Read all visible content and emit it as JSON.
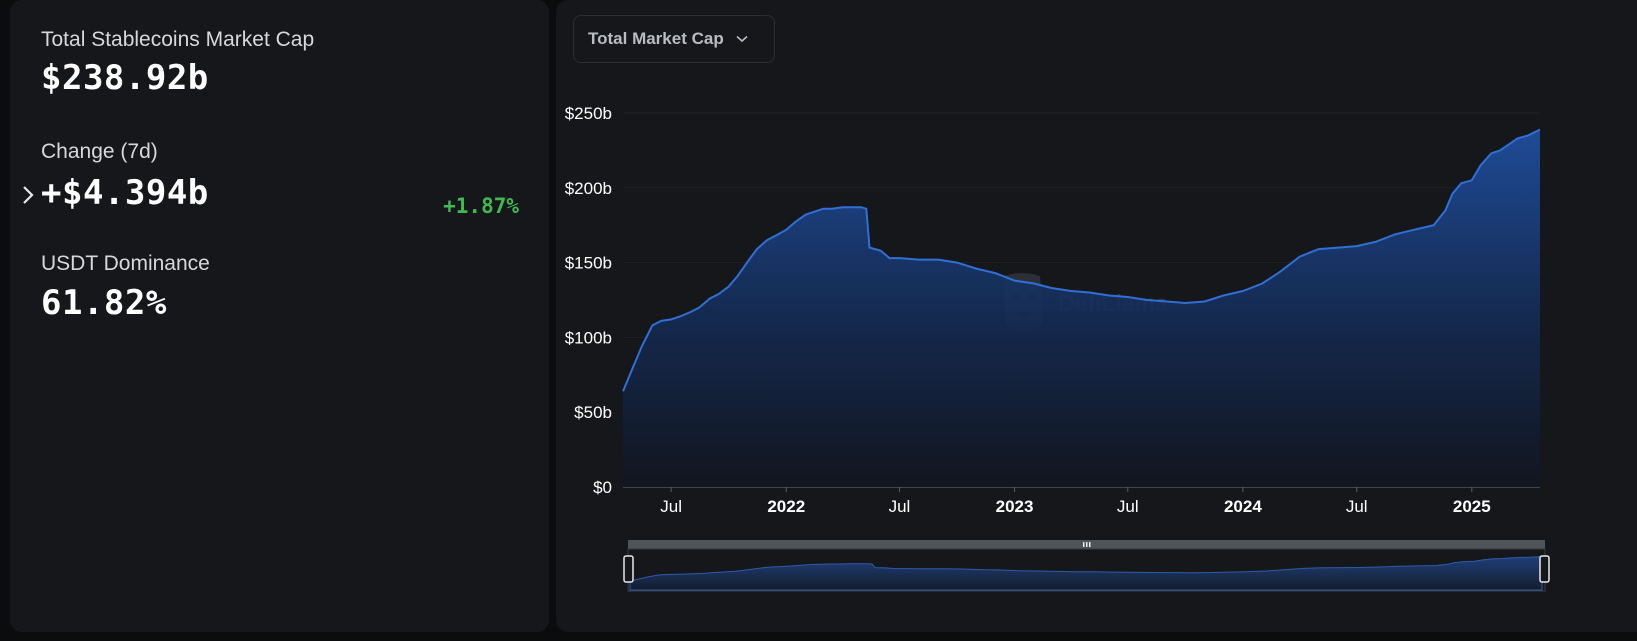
{
  "stats": {
    "total_label": "Total Stablecoins Market Cap",
    "total_value": "$238.92b",
    "change_label": "Change (7d)",
    "change_value": "+$4.394b",
    "change_pct": "+1.87%",
    "dominance_label": "USDT Dominance",
    "dominance_value": "61.82%"
  },
  "dropdown": {
    "label": "Total Market Cap",
    "icon": "chevron-down-icon"
  },
  "colors": {
    "accent": "#2f6fd6",
    "positive": "#3fb950",
    "panel": "#16171a"
  },
  "watermark": {
    "text": "DefiLlama",
    "icon": "llama-logo-icon"
  },
  "chart_data": {
    "type": "area",
    "ylim": [
      0,
      250
    ],
    "y_unit": "b",
    "y_ticks": [
      "$0",
      "$50b",
      "$100b",
      "$150b",
      "$200b",
      "$250b"
    ],
    "x_ticks": [
      "Jul",
      "2022",
      "Jul",
      "2023",
      "Jul",
      "2024",
      "Jul",
      "2025"
    ],
    "x_tick_dates": [
      "2021-07-01",
      "2022-01-01",
      "2022-07-01",
      "2023-01-01",
      "2023-07-01",
      "2024-01-01",
      "2024-07-01",
      "2025-01-01"
    ],
    "x_range": [
      "2021-04-15",
      "2025-04-20"
    ],
    "grid": true,
    "legend": "none",
    "series": [
      {
        "points": [
          [
            "2021-04-15",
            64
          ],
          [
            "2021-05-01",
            80
          ],
          [
            "2021-05-15",
            94
          ],
          [
            "2021-06-01",
            108
          ],
          [
            "2021-06-15",
            111
          ],
          [
            "2021-07-01",
            112
          ],
          [
            "2021-07-15",
            114
          ],
          [
            "2021-08-01",
            117
          ],
          [
            "2021-08-15",
            120
          ],
          [
            "2021-09-01",
            126
          ],
          [
            "2021-09-15",
            129
          ],
          [
            "2021-10-01",
            134
          ],
          [
            "2021-10-15",
            141
          ],
          [
            "2021-11-01",
            151
          ],
          [
            "2021-11-15",
            159
          ],
          [
            "2021-12-01",
            165
          ],
          [
            "2021-12-15",
            168
          ],
          [
            "2022-01-01",
            172
          ],
          [
            "2022-01-15",
            177
          ],
          [
            "2022-02-01",
            182
          ],
          [
            "2022-02-15",
            184
          ],
          [
            "2022-03-01",
            186
          ],
          [
            "2022-03-15",
            186
          ],
          [
            "2022-04-01",
            187
          ],
          [
            "2022-04-15",
            187
          ],
          [
            "2022-05-01",
            187
          ],
          [
            "2022-05-09",
            186
          ],
          [
            "2022-05-14",
            160
          ],
          [
            "2022-06-01",
            158
          ],
          [
            "2022-06-15",
            153
          ],
          [
            "2022-07-01",
            153
          ],
          [
            "2022-08-01",
            152
          ],
          [
            "2022-09-01",
            152
          ],
          [
            "2022-10-01",
            150
          ],
          [
            "2022-11-01",
            146
          ],
          [
            "2022-12-01",
            143
          ],
          [
            "2023-01-01",
            138
          ],
          [
            "2023-02-01",
            136
          ],
          [
            "2023-03-01",
            133
          ],
          [
            "2023-04-01",
            131
          ],
          [
            "2023-05-01",
            130
          ],
          [
            "2023-06-01",
            128
          ],
          [
            "2023-07-01",
            127
          ],
          [
            "2023-08-01",
            125
          ],
          [
            "2023-09-01",
            124
          ],
          [
            "2023-10-01",
            123
          ],
          [
            "2023-11-01",
            124
          ],
          [
            "2023-12-01",
            128
          ],
          [
            "2024-01-01",
            131
          ],
          [
            "2024-02-01",
            136
          ],
          [
            "2024-03-01",
            144
          ],
          [
            "2024-04-01",
            154
          ],
          [
            "2024-05-01",
            159
          ],
          [
            "2024-06-01",
            160
          ],
          [
            "2024-07-01",
            161
          ],
          [
            "2024-08-01",
            164
          ],
          [
            "2024-09-01",
            169
          ],
          [
            "2024-10-01",
            172
          ],
          [
            "2024-11-01",
            175
          ],
          [
            "2024-11-20",
            185
          ],
          [
            "2024-12-01",
            196
          ],
          [
            "2024-12-15",
            203
          ],
          [
            "2025-01-01",
            205
          ],
          [
            "2025-01-15",
            215
          ],
          [
            "2025-02-01",
            223
          ],
          [
            "2025-02-15",
            225
          ],
          [
            "2025-03-01",
            229
          ],
          [
            "2025-03-15",
            233
          ],
          [
            "2025-04-01",
            235
          ],
          [
            "2025-04-20",
            239
          ]
        ]
      }
    ]
  }
}
